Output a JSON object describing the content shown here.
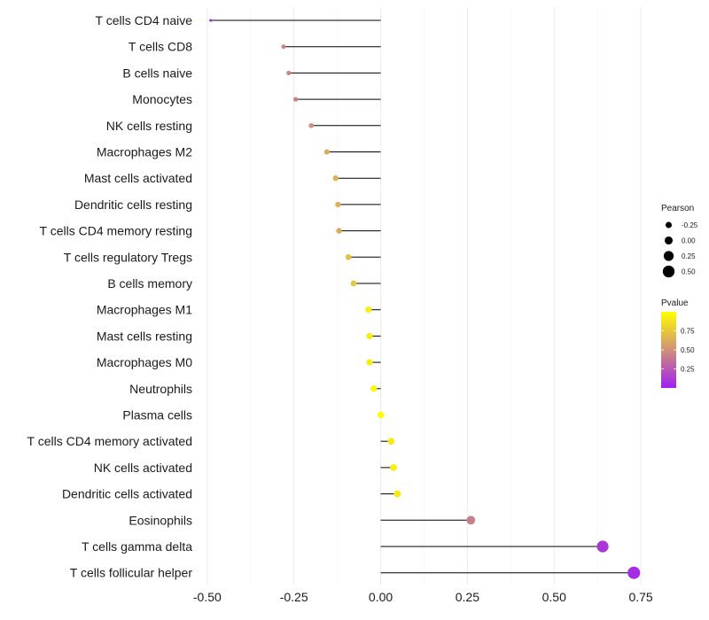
{
  "chart_data": {
    "type": "lollipop",
    "categories": [
      "T cells CD4 naive",
      "T cells CD8",
      "B cells naive",
      "Monocytes",
      "NK cells resting",
      "Macrophages M2",
      "Mast cells activated",
      "Dendritic cells resting",
      "T cells CD4 memory resting",
      "T cells regulatory  Tregs ",
      "B cells memory",
      "Macrophages M1",
      "Mast cells resting",
      "Macrophages M0",
      "Neutrophils",
      "Plasma cells",
      "T cells CD4 memory activated",
      "NK cells activated",
      "Dendritic cells activated",
      "Eosinophils",
      "T cells gamma delta",
      "T cells follicular helper"
    ],
    "values": [
      -0.49,
      -0.28,
      -0.265,
      -0.245,
      -0.2,
      -0.155,
      -0.13,
      -0.123,
      -0.12,
      -0.093,
      -0.078,
      -0.035,
      -0.032,
      -0.032,
      -0.02,
      0.0,
      0.03,
      0.037,
      0.048,
      0.26,
      0.64,
      0.73
    ],
    "pvalues": [
      0.02,
      0.45,
      0.45,
      0.45,
      0.5,
      0.62,
      0.65,
      0.65,
      0.62,
      0.72,
      0.75,
      0.92,
      0.92,
      0.92,
      0.97,
      0.99,
      0.9,
      0.93,
      0.9,
      0.42,
      0.1,
      0.05
    ],
    "xlim": [
      -0.52,
      0.76
    ],
    "xticks": [
      -0.5,
      -0.25,
      0.0,
      0.25,
      0.5,
      0.75
    ],
    "xtick_labels": [
      "-0.50",
      "-0.25",
      "0.00",
      "0.25",
      "0.50",
      "0.75"
    ],
    "grid": true,
    "size_legend": {
      "title": "Pearson",
      "values": [
        -0.25,
        0.0,
        0.25,
        0.5
      ],
      "labels": [
        "-0.25",
        "0.00",
        "0.25",
        "0.50"
      ]
    },
    "color_legend": {
      "title": "Pvalue",
      "range": [
        0.0,
        1.0
      ],
      "ticks": [
        0.25,
        0.5,
        0.75
      ],
      "tick_labels": [
        "0.25",
        "0.50",
        "0.75"
      ],
      "low_color": "#a020f0",
      "high_color": "#ffff00"
    },
    "segment_color": "#000000",
    "legend_position": "right"
  }
}
